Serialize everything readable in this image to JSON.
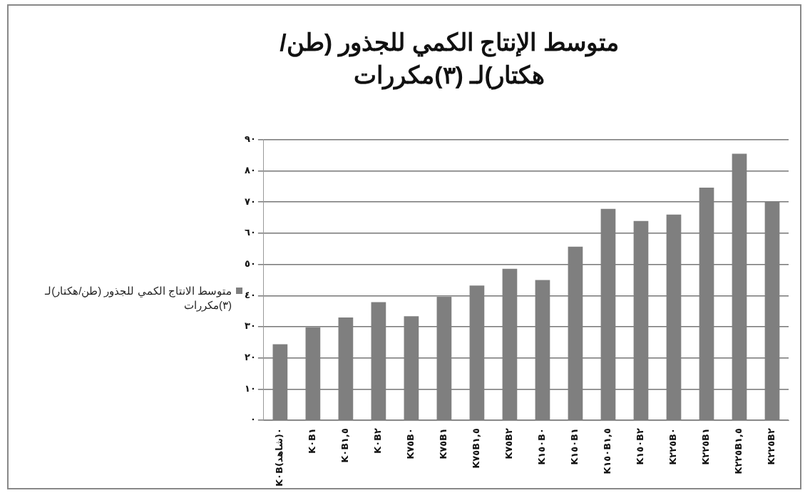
{
  "chart_data": {
    "type": "bar",
    "title": "متوسط الإنتاج الكمي للجذور (طن/هكتار)لـ (٣)مكررات",
    "categories": [
      "K٠B٠(شاهد)",
      "K٠B١",
      "K٠B١,٥",
      "K٠B٢",
      "K٧٥B٠",
      "K٧٥B١",
      "K٧٥B١,٥",
      "K٧٥B٢",
      "K١٥٠B٠",
      "K١٥٠B١",
      "K١٥٠B١,٥",
      "K١٥٠B٢",
      "K٢٢٥B٠",
      "K٢٢٥B١",
      "K٢٢٥B١,٥",
      "K٢٢٥B٢"
    ],
    "series": [
      {
        "name": "متوسط الانتاج الكمي للجذور (طن/هكتار)لـ (٣)مكررات",
        "color": "#7f7f7f",
        "values": [
          24.4,
          29.8,
          33,
          37.9,
          33.4,
          39.6,
          43.2,
          48.6,
          45,
          55.7,
          67.8,
          63.9,
          66,
          74.6,
          85.5,
          70.2
        ]
      }
    ],
    "ylim": [
      0,
      90
    ],
    "yticks": [
      {
        "value": 0,
        "label": "٠"
      },
      {
        "value": 10,
        "label": "١٠"
      },
      {
        "value": 20,
        "label": "٢٠"
      },
      {
        "value": 30,
        "label": "٣٠"
      },
      {
        "value": 40,
        "label": "٤٠"
      },
      {
        "value": 50,
        "label": "٥٠"
      },
      {
        "value": 60,
        "label": "٦٠"
      },
      {
        "value": 70,
        "label": "٧٠"
      },
      {
        "value": 80,
        "label": "٨٠"
      },
      {
        "value": 90,
        "label": "٩٠"
      }
    ],
    "grid": "y",
    "legend": "left"
  }
}
